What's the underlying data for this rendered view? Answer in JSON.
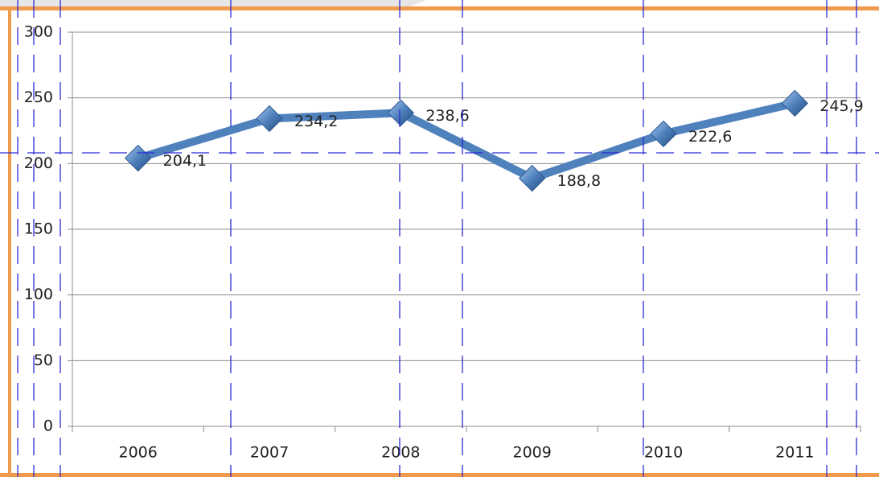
{
  "chart_data": {
    "type": "line",
    "categories": [
      "2006",
      "2007",
      "2008",
      "2009",
      "2010",
      "2011"
    ],
    "values": [
      204.1,
      234.2,
      238.6,
      188.8,
      222.6,
      245.9
    ],
    "value_labels": [
      "204,1",
      "234,2",
      "238,6",
      "188,8",
      "222,6",
      "245,9"
    ],
    "color": "#4f81bd",
    "ylim": [
      0,
      300
    ],
    "yticks": [
      0,
      50,
      100,
      150,
      200,
      250,
      300
    ],
    "grid": true
  }
}
